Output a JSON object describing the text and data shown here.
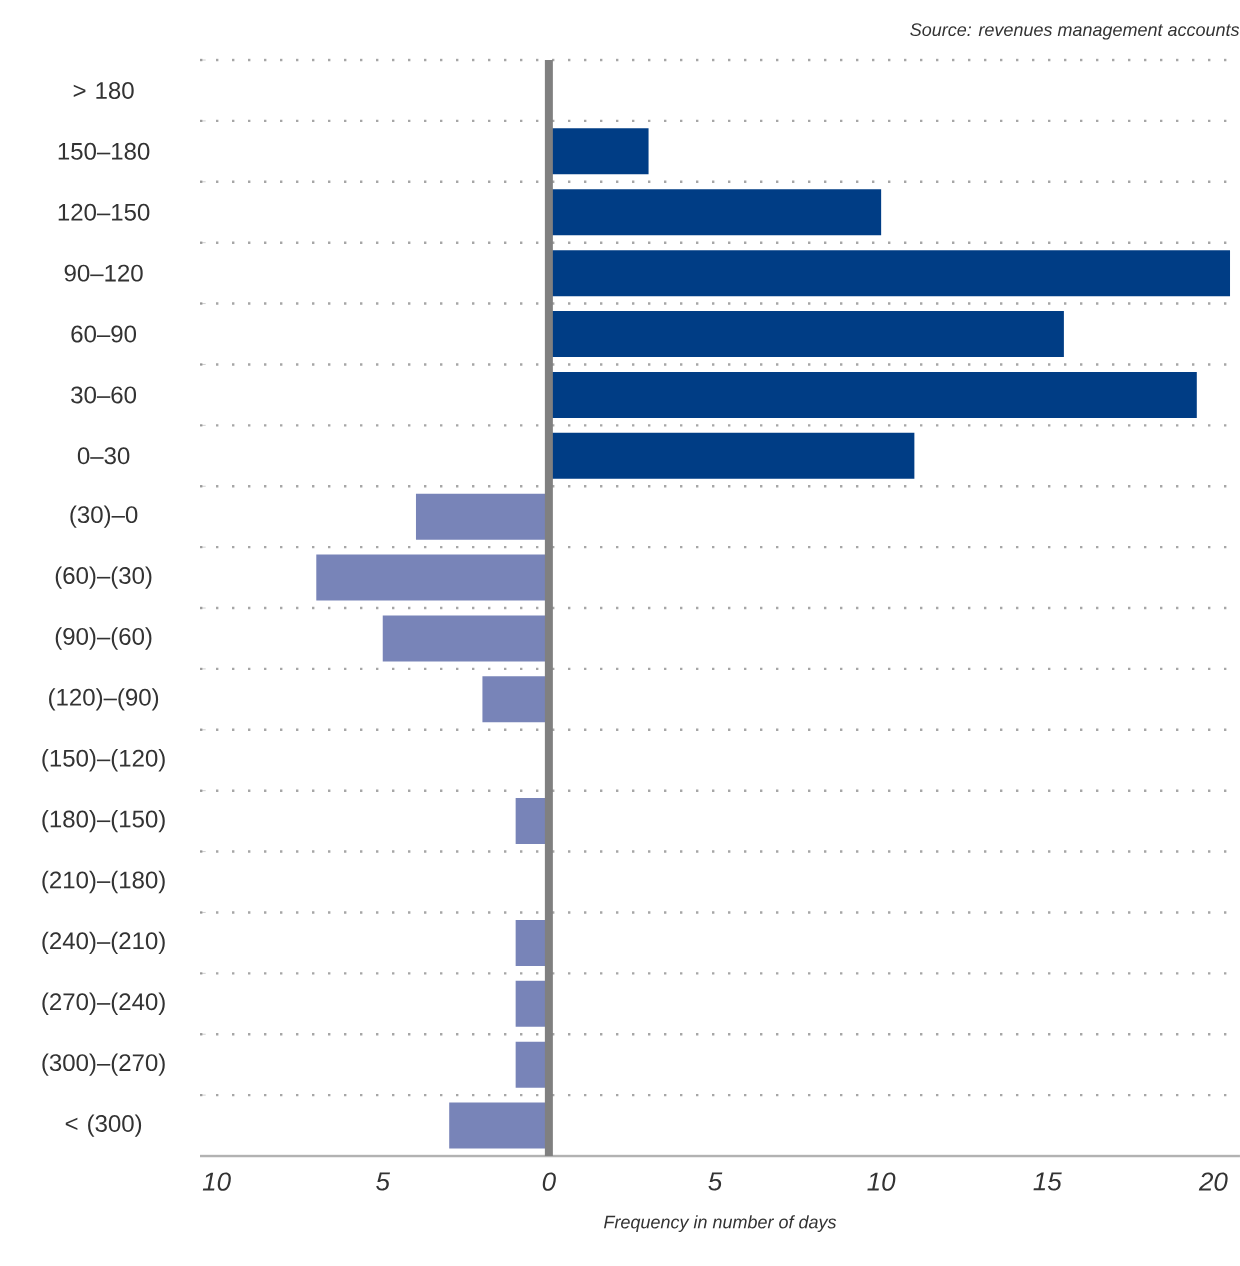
{
  "chart_data": {
    "type": "bar",
    "orientation": "horizontal",
    "categories": [
      "> 180",
      "150–180",
      "120–150",
      "90–120",
      "60–90",
      "30–60",
      "0–30",
      "(30)–0",
      "(60)–(30)",
      "(90)–(60)",
      "(120)–(90)",
      "(150)–(120)",
      "(180)–(150)",
      "(210)–(180)",
      "(240)–(210)",
      "(270)–(240)",
      "(300)–(270)",
      "< (300)"
    ],
    "values": [
      0,
      3,
      10,
      20.5,
      15.5,
      19.5,
      11,
      -4,
      -7,
      -5,
      -2,
      0,
      -1,
      0,
      -1,
      -1,
      -1,
      -3
    ],
    "colors": [
      "#003d85",
      "#003d85",
      "#003d85",
      "#003d85",
      "#003d85",
      "#003d85",
      "#003d85",
      "#7884b8",
      "#7884b8",
      "#7884b8",
      "#7884b8",
      "#7884b8",
      "#7884b8",
      "#7884b8",
      "#7884b8",
      "#7884b8",
      "#7884b8",
      "#7884b8"
    ],
    "xlim": [
      -10.5,
      20.8
    ],
    "xticks": [
      {
        "value": -10,
        "label": "10"
      },
      {
        "value": -5,
        "label": "5"
      },
      0,
      5,
      10,
      15,
      20
    ],
    "xlabel": "Frequency in number of days",
    "annotations": [
      "Source: revenues management accounts"
    ],
    "ref_lines": [
      {
        "axis": "x",
        "value": 0,
        "color": "#808080"
      }
    ],
    "grid": "y"
  }
}
